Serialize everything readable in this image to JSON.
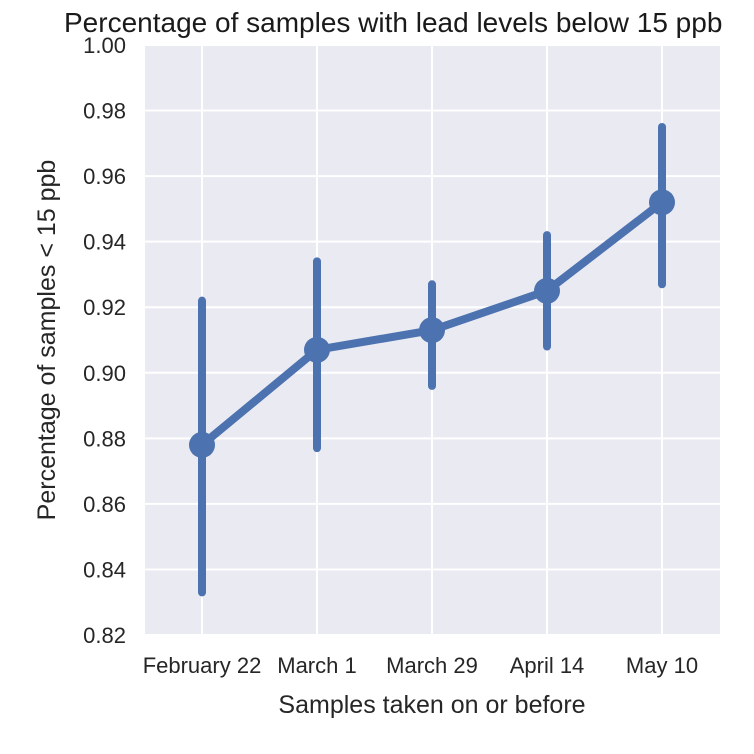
{
  "chart_data": {
    "type": "line",
    "title": "Percentage of samples with lead levels below 15 ppb",
    "xlabel": "Samples taken on or before",
    "ylabel": "Percentage of samples < 15 ppb",
    "categories": [
      "February 22",
      "March 1",
      "March 29",
      "April 14",
      "May 10"
    ],
    "series": [
      {
        "values": [
          0.878,
          0.907,
          0.913,
          0.925,
          0.952
        ],
        "error_low": [
          0.833,
          0.877,
          0.896,
          0.908,
          0.927
        ],
        "error_high": [
          0.922,
          0.934,
          0.927,
          0.942,
          0.975
        ]
      }
    ],
    "ylim": [
      0.82,
      1.0
    ],
    "yticks": [
      "0.82",
      "0.84",
      "0.86",
      "0.88",
      "0.90",
      "0.92",
      "0.94",
      "0.96",
      "0.98",
      "1.00"
    ],
    "grid": true,
    "colors": {
      "series": "#4c72b0",
      "plot_background": "#eaeaf2",
      "grid": "#ffffff"
    }
  }
}
